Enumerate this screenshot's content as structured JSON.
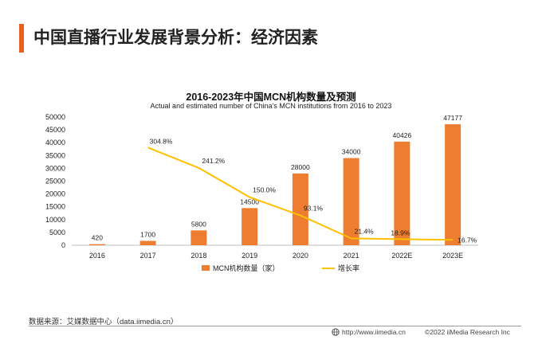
{
  "header": {
    "title": "中国直播行业发展背景分析：经济因素",
    "accent_color": "#e8601c"
  },
  "chart_data": {
    "type": "bar",
    "title": "2016-2023年中国MCN机构数量及预测",
    "subtitle": "Actual and estimated number of China's MCN institutions from 2016 to 2023",
    "categories": [
      "2016",
      "2017",
      "2018",
      "2019",
      "2020",
      "2021",
      "2022E",
      "2023E"
    ],
    "series": [
      {
        "name": "MCN机构数量（家）",
        "type": "bar",
        "axis": "left",
        "color": "#ee7d31",
        "values": [
          420,
          1700,
          5800,
          14500,
          28000,
          34000,
          40426,
          47177
        ],
        "labels": [
          "420",
          "1700",
          "5800",
          "14500",
          "28000",
          "34000",
          "40426",
          "47177"
        ]
      },
      {
        "name": "增长率",
        "type": "line",
        "axis": "right",
        "color": "#ffc000",
        "values": [
          null,
          304.8,
          241.2,
          150.0,
          93.1,
          21.4,
          18.9,
          16.7
        ],
        "labels": [
          null,
          "304.8%",
          "241.2%",
          "150.0%",
          "93.1%",
          "21.4%",
          "18.9%",
          "16.7%"
        ]
      }
    ],
    "y_ticks": [
      "0",
      "5000",
      "10000",
      "15000",
      "20000",
      "25000",
      "30000",
      "35000",
      "40000",
      "45000",
      "50000"
    ],
    "ylim": [
      0,
      50000
    ],
    "y2lim": [
      0,
      400
    ],
    "legend_position": "bottom"
  },
  "footer": {
    "source": "数据来源：艾媒数据中心（data.iimedia.cn）",
    "url": "http://www.iimedia.cn",
    "copyright": "©2022  iiMedia Research  Inc"
  }
}
